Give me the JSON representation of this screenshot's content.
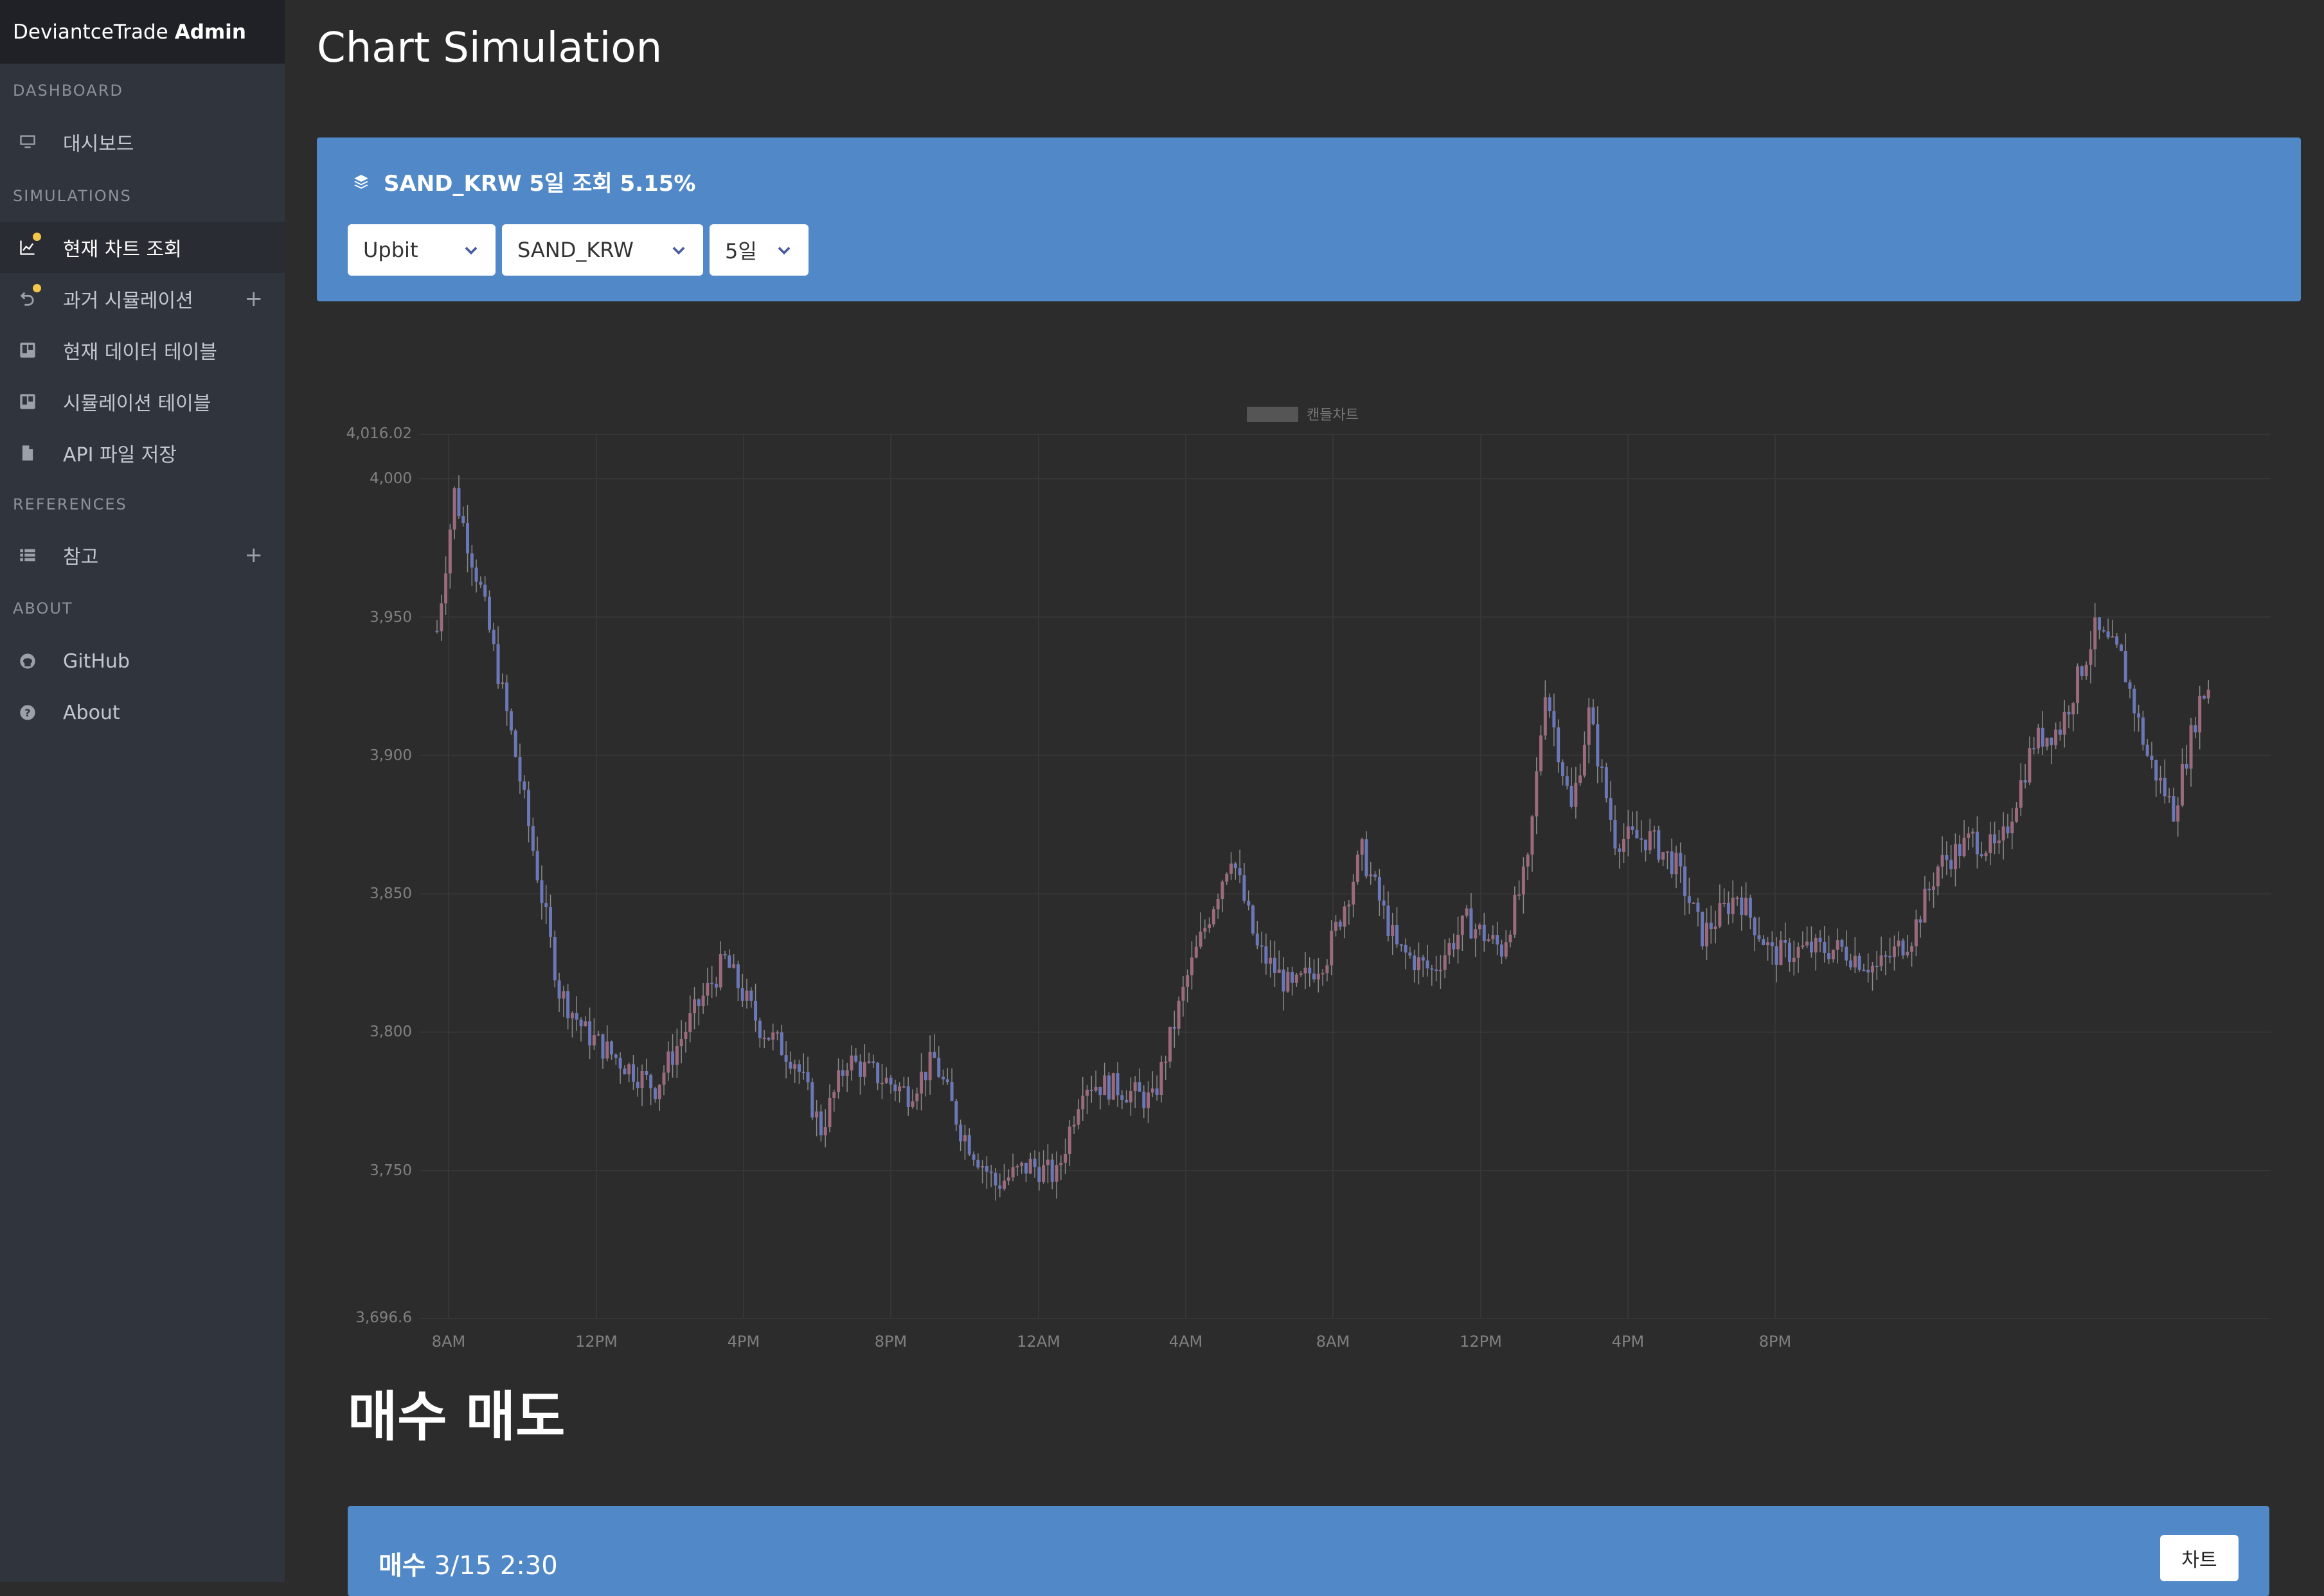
{
  "sidebar": {
    "brand": "DeviantceTrade",
    "brand_bold": "Admin",
    "sections": [
      {
        "heading": "DASHBOARD",
        "items": [
          {
            "label": "대시보드",
            "icon": "monitor-icon"
          }
        ]
      },
      {
        "heading": "SIMULATIONS",
        "items": [
          {
            "label": "현재 차트 조회",
            "icon": "chart-line-icon",
            "active": true,
            "badge": true
          },
          {
            "label": "과거 시뮬레이션",
            "icon": "history-icon",
            "badge": true,
            "expand": "+"
          },
          {
            "label": "현재 데이터 테이블",
            "icon": "table-icon"
          },
          {
            "label": "시뮬레이션 테이블",
            "icon": "table-icon"
          },
          {
            "label": "API 파일 저장",
            "icon": "file-icon"
          }
        ]
      },
      {
        "heading": "REFERENCES",
        "items": [
          {
            "label": "참고",
            "icon": "list-icon",
            "expand": "+"
          }
        ]
      },
      {
        "heading": "ABOUT",
        "items": [
          {
            "label": "GitHub",
            "icon": "github-icon"
          },
          {
            "label": "About",
            "icon": "question-circle-icon"
          }
        ]
      }
    ]
  },
  "main": {
    "title": "Chart Simulation",
    "panel": {
      "title": "SAND_KRW 5일 조회 5.15%",
      "exchange": "Upbit",
      "market": "SAND_KRW",
      "period": "5일"
    },
    "trade_title": "매수 매도",
    "buy": {
      "label_bold": "매수",
      "time": "3/15 2:30",
      "button": "차트"
    }
  },
  "colors": {
    "panel": "#5189c8",
    "sidebar": "#30343c",
    "candle_up": "#9b6a7c",
    "candle_down": "#6a78b8"
  },
  "chart_data": {
    "type": "candlestick",
    "legend": "캔들차트",
    "legend_position": "top-center",
    "ylim": [
      3696.6,
      4016.02
    ],
    "ytick_labels": [
      "4,016.02",
      "4,000",
      "3,950",
      "3,900",
      "3,850",
      "3,800",
      "3,750",
      "3,696.6"
    ],
    "xtick_labels": [
      "8AM",
      "12PM",
      "4PM",
      "8PM",
      "12AM",
      "4AM",
      "8AM",
      "12PM",
      "4PM",
      "8PM"
    ],
    "keyframes_close": [
      [
        0,
        3945
      ],
      [
        4,
        3995
      ],
      [
        10,
        3960
      ],
      [
        18,
        3900
      ],
      [
        28,
        3815
      ],
      [
        34,
        3800
      ],
      [
        40,
        3792
      ],
      [
        50,
        3780
      ],
      [
        60,
        3810
      ],
      [
        66,
        3826
      ],
      [
        74,
        3802
      ],
      [
        82,
        3790
      ],
      [
        88,
        3765
      ],
      [
        94,
        3790
      ],
      [
        100,
        3785
      ],
      [
        108,
        3778
      ],
      [
        114,
        3790
      ],
      [
        120,
        3765
      ],
      [
        128,
        3745
      ],
      [
        136,
        3752
      ],
      [
        142,
        3748
      ],
      [
        148,
        3782
      ],
      [
        156,
        3780
      ],
      [
        164,
        3775
      ],
      [
        172,
        3820
      ],
      [
        182,
        3865
      ],
      [
        188,
        3830
      ],
      [
        196,
        3815
      ],
      [
        204,
        3828
      ],
      [
        212,
        3865
      ],
      [
        220,
        3830
      ],
      [
        228,
        3822
      ],
      [
        236,
        3840
      ],
      [
        244,
        3830
      ],
      [
        250,
        3860
      ],
      [
        254,
        3925
      ],
      [
        260,
        3880
      ],
      [
        264,
        3915
      ],
      [
        270,
        3870
      ],
      [
        278,
        3870
      ],
      [
        284,
        3860
      ],
      [
        290,
        3835
      ],
      [
        298,
        3850
      ],
      [
        306,
        3828
      ],
      [
        314,
        3830
      ],
      [
        322,
        3830
      ],
      [
        330,
        3823
      ],
      [
        338,
        3835
      ],
      [
        344,
        3860
      ],
      [
        352,
        3870
      ],
      [
        358,
        3865
      ],
      [
        366,
        3905
      ],
      [
        372,
        3910
      ],
      [
        380,
        3945
      ],
      [
        386,
        3935
      ],
      [
        392,
        3900
      ],
      [
        398,
        3880
      ],
      [
        404,
        3920
      ],
      [
        406,
        3925
      ]
    ]
  }
}
